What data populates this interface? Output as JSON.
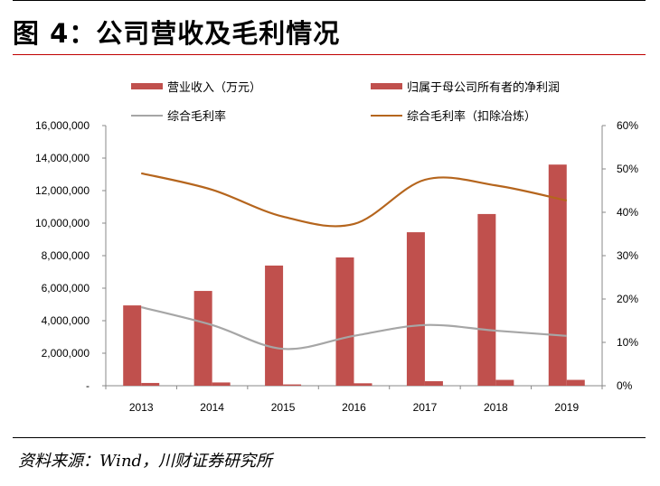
{
  "title": "图 4：公司营收及毛利情况",
  "source": "资料来源：Wind，川财证券研究所",
  "chart_data": {
    "type": "bar",
    "categories": [
      "2013",
      "2014",
      "2015",
      "2016",
      "2017",
      "2018",
      "2019"
    ],
    "y_left": {
      "range": [
        0,
        16000000
      ],
      "ticks": [
        "-",
        "2,000,000",
        "4,000,000",
        "6,000,000",
        "8,000,000",
        "10,000,000",
        "12,000,000",
        "14,000,000",
        "16,000,000"
      ]
    },
    "y_right": {
      "range": [
        0,
        60
      ],
      "ticks": [
        "0%",
        "10%",
        "20%",
        "30%",
        "40%",
        "50%",
        "60%"
      ]
    },
    "legend_position": "top",
    "series": [
      {
        "name": "营业收入（万元）",
        "type": "bar",
        "axis": "left",
        "color": "#c0504d",
        "values": [
          4940000,
          5830000,
          7390000,
          7890000,
          9440000,
          10560000,
          13600000
        ]
      },
      {
        "name": "归属于母公司所有者的净利润",
        "type": "bar",
        "axis": "left",
        "color": "#c0504d",
        "values": [
          170000,
          200000,
          80000,
          150000,
          280000,
          360000,
          360000
        ]
      },
      {
        "name": "综合毛利率",
        "type": "line",
        "axis": "right",
        "color": "#a6a6a6",
        "values": [
          18.1,
          14.0,
          8.5,
          11.5,
          14.0,
          12.7,
          11.5
        ]
      },
      {
        "name": "综合毛利率（扣除冶炼）",
        "type": "line",
        "axis": "right",
        "color": "#b5651d",
        "values": [
          49.0,
          45.2,
          39.0,
          37.3,
          47.5,
          46.2,
          42.7
        ]
      }
    ]
  }
}
